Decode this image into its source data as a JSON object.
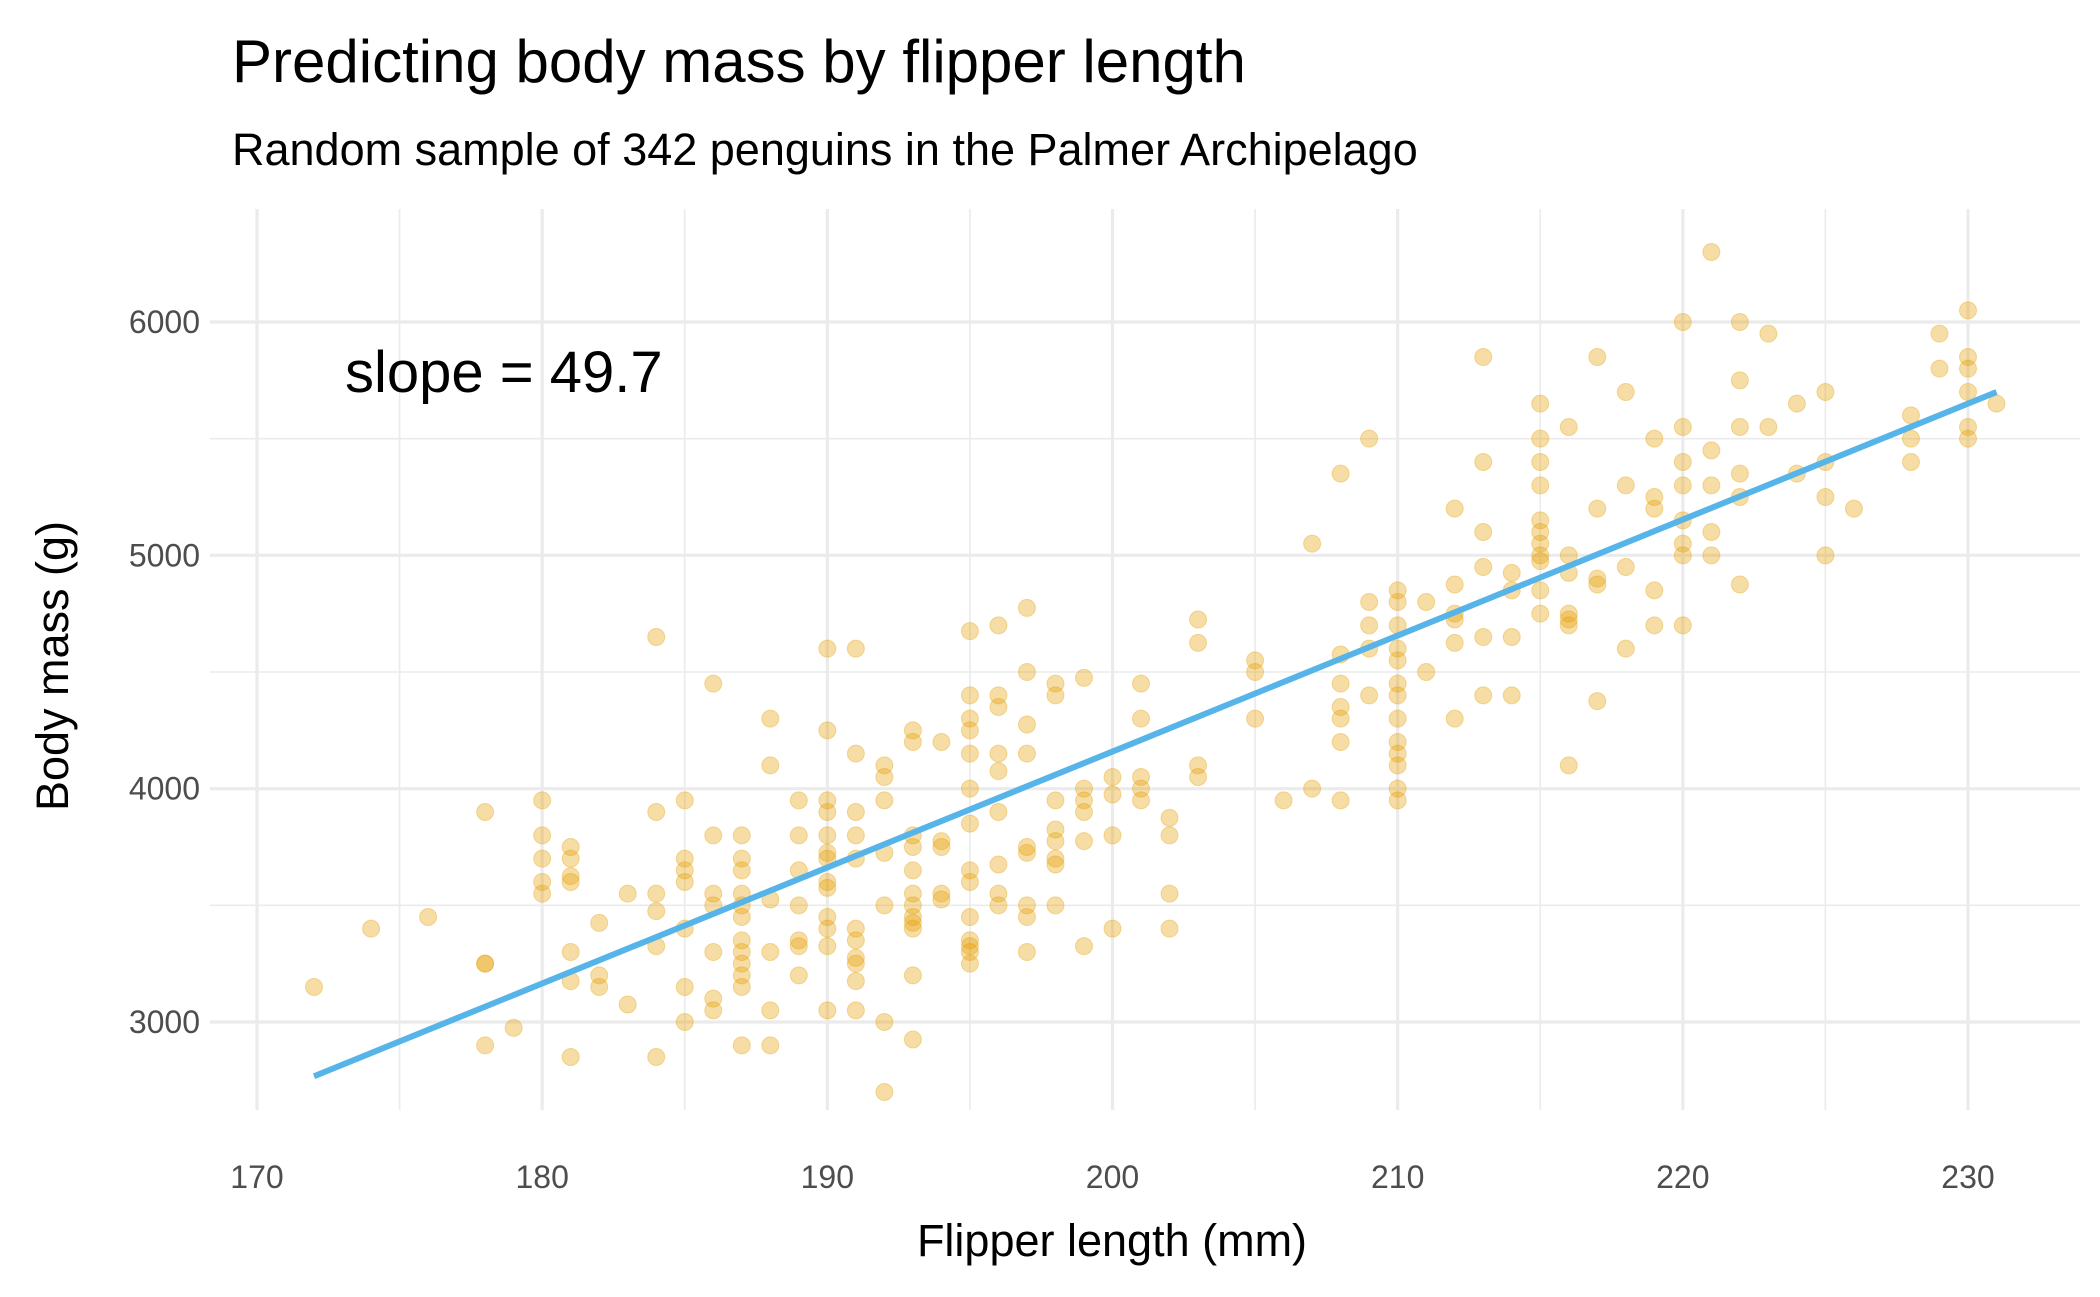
{
  "chart_data": {
    "type": "scatter",
    "title": "Predicting body mass by flipper length",
    "subtitle": "Random sample of 342 penguins in the Palmer Archipelago",
    "xlabel": "Flipper length (mm)",
    "ylabel": "Body mass (g)",
    "xlim": [
      168,
      232.5
    ],
    "ylim": [
      2500,
      6450
    ],
    "x_ticks": [
      170,
      180,
      190,
      200,
      210,
      220,
      230
    ],
    "y_ticks": [
      3000,
      4000,
      5000,
      6000
    ],
    "x_tick_labels": [
      "170",
      "180",
      "190",
      "200",
      "210",
      "220",
      "230"
    ],
    "y_tick_labels": [
      "3000",
      "4000",
      "5000",
      "6000"
    ],
    "grid": true,
    "annotation": "slope = 49.7",
    "point_color": "#E69F00",
    "line_color": "#56B4E9",
    "regression": {
      "slope": 49.7,
      "intercept": -5780.8,
      "x_range": [
        172,
        231
      ]
    },
    "points_by_x": {
      "172": [
        3150
      ],
      "174": [
        3400
      ],
      "176": [
        3450
      ],
      "178": [
        3900,
        3250,
        3250,
        2900
      ],
      "179": [
        2975
      ],
      "180": [
        3950,
        3800,
        3700,
        3600,
        3550
      ],
      "181": [
        3750,
        3700,
        3625,
        3600,
        3300,
        3175,
        2850
      ],
      "182": [
        3425,
        3200,
        3150
      ],
      "183": [
        3550,
        3075
      ],
      "184": [
        4650,
        3900,
        3550,
        3475,
        3325,
        2850
      ],
      "185": [
        3950,
        3700,
        3650,
        3600,
        3400,
        3150,
        3000
      ],
      "186": [
        4450,
        3800,
        3550,
        3500,
        3300,
        3100,
        3050
      ],
      "187": [
        3800,
        3700,
        3650,
        3550,
        3500,
        3450,
        3350,
        3300,
        3250,
        3200,
        3150,
        2900
      ],
      "188": [
        4300,
        4100,
        3525,
        3300,
        3050,
        2900
      ],
      "189": [
        3950,
        3800,
        3650,
        3500,
        3350,
        3325,
        3200
      ],
      "190": [
        4600,
        4250,
        3950,
        3900,
        3800,
        3725,
        3700,
        3600,
        3575,
        3450,
        3400,
        3325,
        3050
      ],
      "191": [
        4600,
        4150,
        3900,
        3800,
        3700,
        3400,
        3350,
        3275,
        3250,
        3175,
        3050
      ],
      "192": [
        4100,
        4050,
        3950,
        3725,
        3500,
        3000,
        2700
      ],
      "193": [
        4250,
        4200,
        3800,
        3750,
        3650,
        3550,
        3500,
        3450,
        3425,
        3400,
        3200,
        2925
      ],
      "194": [
        4200,
        3775,
        3750,
        3550,
        3525
      ],
      "195": [
        4675,
        4400,
        4300,
        4250,
        4150,
        4000,
        3850,
        3650,
        3600,
        3450,
        3350,
        3325,
        3300,
        3250
      ],
      "196": [
        4700,
        4400,
        4350,
        4150,
        4075,
        3900,
        3675,
        3550,
        3500
      ],
      "197": [
        4775,
        4500,
        4275,
        4150,
        3750,
        3725,
        3500,
        3450,
        3300
      ],
      "198": [
        4450,
        4400,
        3950,
        3825,
        3775,
        3700,
        3675,
        3500
      ],
      "199": [
        4475,
        4000,
        3950,
        3900,
        3775,
        3325
      ],
      "200": [
        4050,
        3975,
        3800,
        3400
      ],
      "201": [
        4450,
        4300,
        4050,
        4000,
        3950
      ],
      "202": [
        3875,
        3800,
        3550,
        3400
      ],
      "203": [
        4725,
        4625,
        4100,
        4050
      ],
      "205": [
        4550,
        4500,
        4300
      ],
      "206": [
        3950
      ],
      "207": [
        5050,
        4000
      ],
      "208": [
        5350,
        4575,
        4450,
        4350,
        4300,
        4200,
        3950
      ],
      "209": [
        5500,
        4800,
        4700,
        4600,
        4400
      ],
      "210": [
        4850,
        4800,
        4700,
        4600,
        4550,
        4450,
        4400,
        4300,
        4200,
        4150,
        4100,
        4000,
        3950
      ],
      "211": [
        4800,
        4500
      ],
      "212": [
        5200,
        4875,
        4750,
        4725,
        4625,
        4300
      ],
      "213": [
        5850,
        5400,
        5100,
        4950,
        4650,
        4400
      ],
      "214": [
        4925,
        4850,
        4650,
        4400
      ],
      "215": [
        5650,
        5500,
        5400,
        5300,
        5150,
        5100,
        5050,
        5000,
        4975,
        4850,
        4750
      ],
      "216": [
        5550,
        5000,
        4925,
        4750,
        4725,
        4700,
        4100
      ],
      "217": [
        5850,
        5200,
        4900,
        4875,
        4375
      ],
      "218": [
        5700,
        5300,
        4950,
        4600
      ],
      "219": [
        5500,
        5250,
        5200,
        4850,
        4700
      ],
      "220": [
        6000,
        5550,
        5400,
        5300,
        5150,
        5050,
        5000,
        4700
      ],
      "221": [
        6300,
        5450,
        5300,
        5100,
        5000
      ],
      "222": [
        6000,
        5750,
        5550,
        5350,
        5250,
        4875
      ],
      "223": [
        5950,
        5550
      ],
      "224": [
        5650,
        5350
      ],
      "225": [
        5700,
        5400,
        5250,
        5000
      ],
      "226": [
        5200
      ],
      "228": [
        5600,
        5500,
        5400
      ],
      "229": [
        5950,
        5800
      ],
      "230": [
        6050,
        5850,
        5800,
        5700,
        5550,
        5500
      ],
      "231": [
        5650
      ]
    }
  }
}
